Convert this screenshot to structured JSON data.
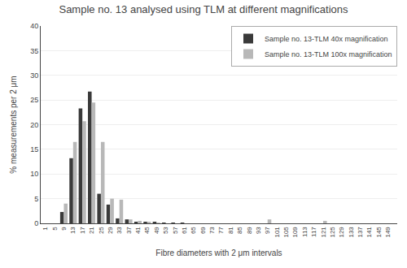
{
  "chart_data": {
    "type": "bar",
    "title": "Sample no. 13 analysed using TLM at different magnifications",
    "xlabel": "Fibre diameters with 2 μm intervals",
    "ylabel": "% measurements per 2 μm",
    "x": [
      1,
      5,
      9,
      13,
      17,
      21,
      25,
      29,
      33,
      37,
      41,
      45,
      49,
      53,
      57,
      61,
      65,
      69,
      73,
      77,
      81,
      85,
      89,
      93,
      97,
      101,
      105,
      109,
      113,
      117,
      121,
      125,
      129,
      133,
      137,
      141,
      145,
      149
    ],
    "series": [
      {
        "name": "Sample no. 13-TLM 40x magnification",
        "color": "#3a3a3a",
        "values": [
          0,
          0,
          2.3,
          13.2,
          23.3,
          26.7,
          6.0,
          3.8,
          1.0,
          0.8,
          0.3,
          0.3,
          0.2,
          0.1,
          0.1,
          0.1,
          0,
          0,
          0,
          0,
          0,
          0,
          0,
          0,
          0,
          0,
          0,
          0,
          0,
          0,
          0,
          0,
          0,
          0,
          0,
          0,
          0,
          0
        ]
      },
      {
        "name": "Sample no. 13-TLM 100x magnification",
        "color": "#b8b8b8",
        "values": [
          0,
          0,
          4.0,
          16.5,
          20.7,
          24.5,
          16.5,
          5.0,
          4.8,
          0.8,
          0.5,
          0.3,
          0.1,
          0,
          0,
          0,
          0,
          0,
          0,
          0,
          0,
          0,
          0,
          0,
          0.8,
          0,
          0,
          0,
          0,
          0,
          0.5,
          0,
          0,
          0,
          0,
          0,
          0,
          0
        ]
      }
    ],
    "xlim": [
      -1,
      153
    ],
    "xticks": [
      1,
      5,
      9,
      13,
      17,
      21,
      25,
      29,
      33,
      37,
      41,
      45,
      49,
      53,
      57,
      61,
      65,
      69,
      73,
      77,
      81,
      85,
      89,
      93,
      97,
      101,
      105,
      109,
      113,
      117,
      121,
      125,
      129,
      133,
      137,
      141,
      145,
      149
    ],
    "ylim": [
      0,
      40
    ],
    "yticks": [
      0,
      5,
      10,
      15,
      20,
      25,
      30,
      35,
      40
    ],
    "grid": true,
    "legend": "upper right"
  }
}
